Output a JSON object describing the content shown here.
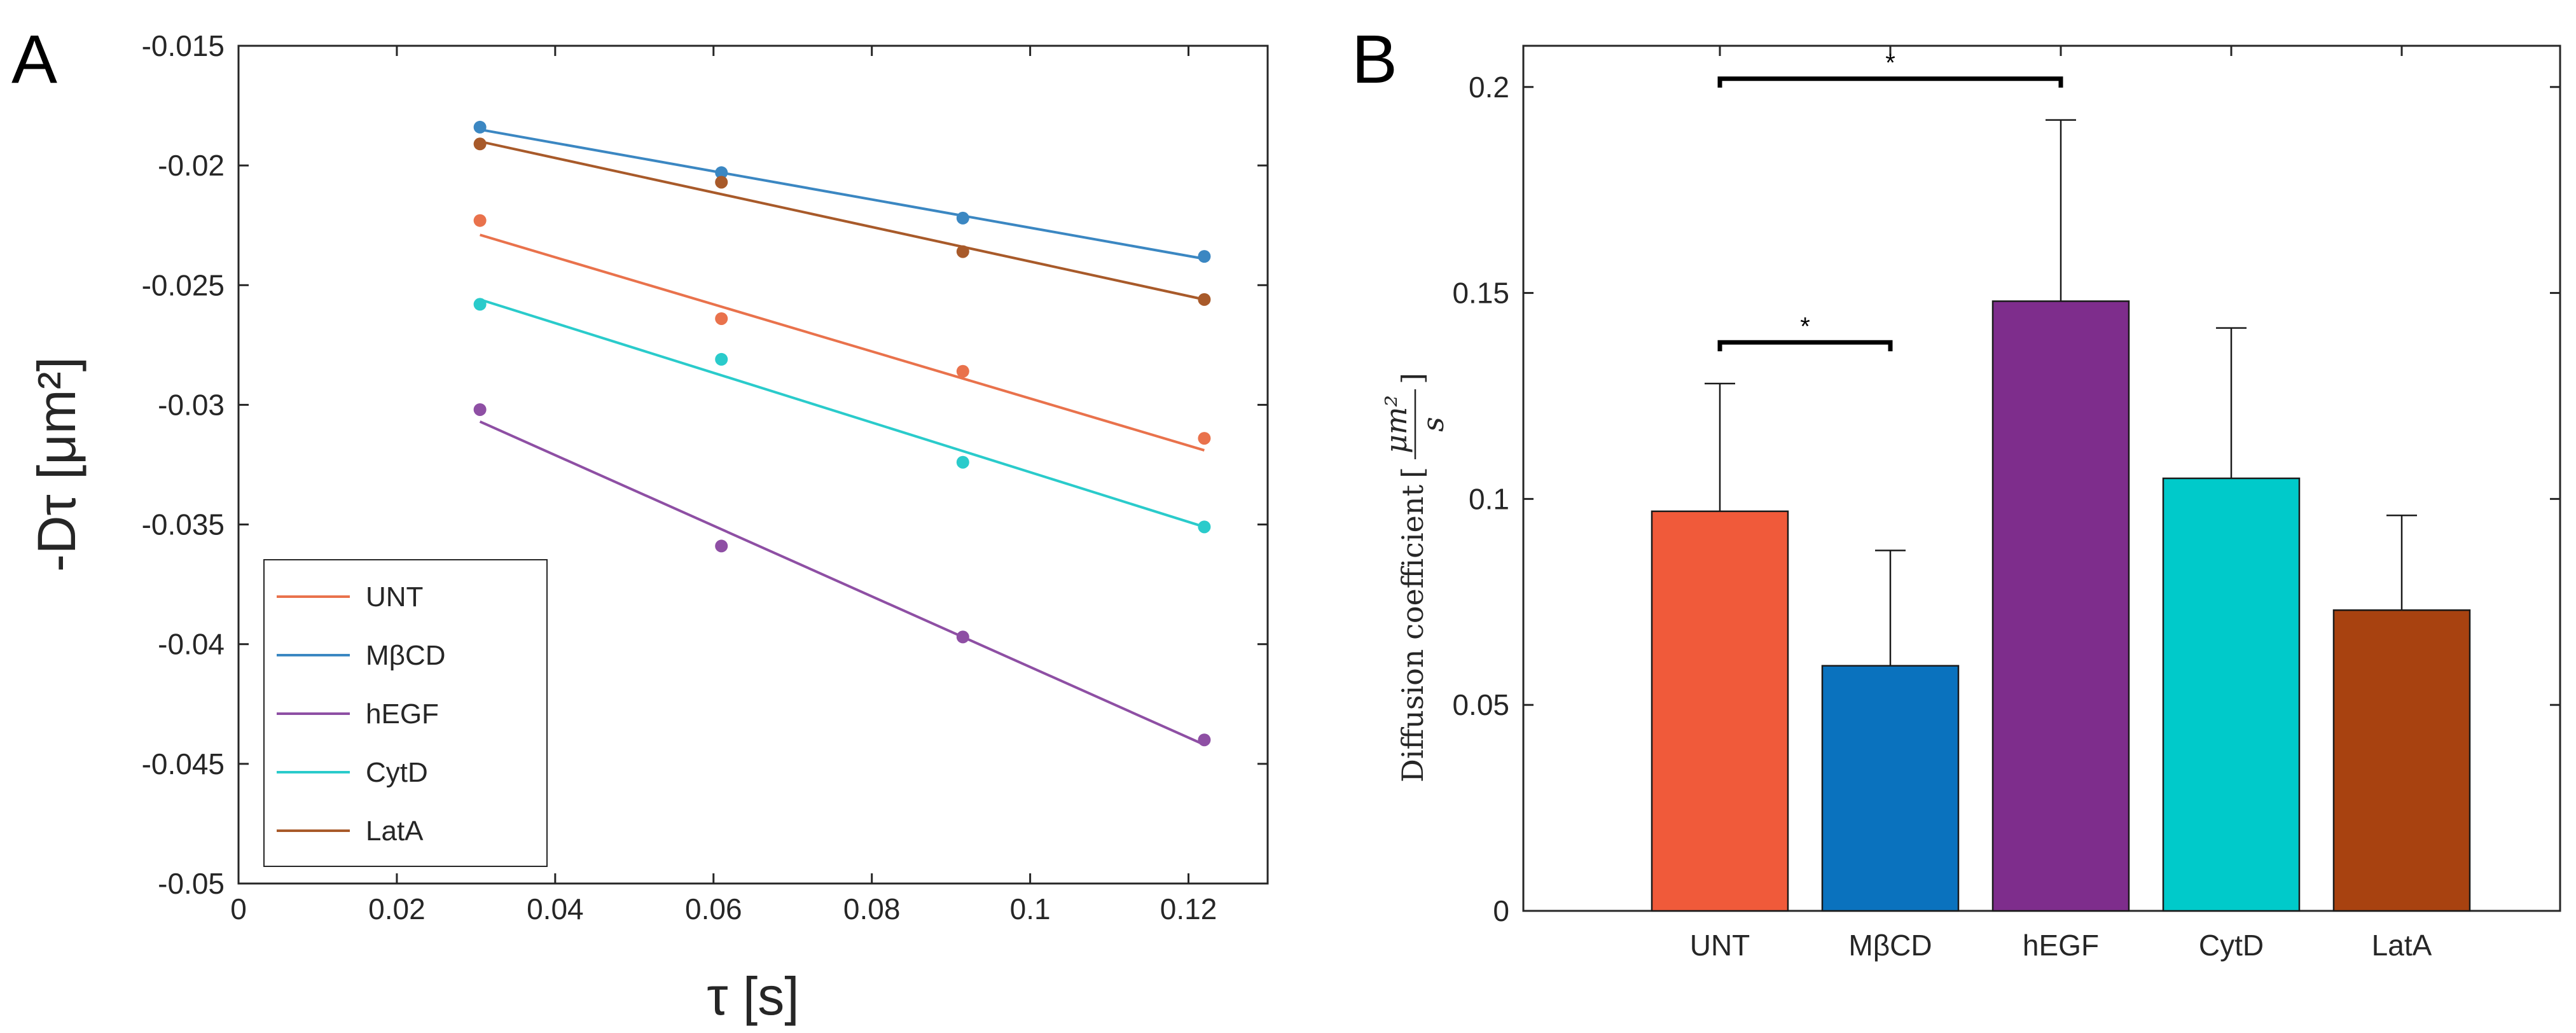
{
  "figure": {
    "panel_a_letter": "A",
    "panel_b_letter": "B"
  },
  "chart_data": [
    {
      "type": "scatter",
      "title": "",
      "xlabel": "τ [s]",
      "ylabel": "-Dτ [μm²]",
      "xlim": [
        0,
        0.13
      ],
      "ylim": [
        -0.05,
        -0.015
      ],
      "x_ticks": [
        0,
        0.02,
        0.04,
        0.06,
        0.08,
        0.1,
        0.12
      ],
      "x_tick_labels": [
        "0",
        "0.02",
        "0.04",
        "0.06",
        "0.08",
        "0.1",
        "0.12"
      ],
      "y_ticks": [
        -0.015,
        -0.02,
        -0.025,
        -0.03,
        -0.035,
        -0.04,
        -0.045,
        -0.05
      ],
      "y_tick_labels": [
        "-0.015",
        "-0.02",
        "-0.025",
        "-0.03",
        "-0.035",
        "-0.04",
        "-0.045",
        "-0.05"
      ],
      "legend_position": "bottom-left",
      "x": [
        0.0305,
        0.061,
        0.0915,
        0.122
      ],
      "series": [
        {
          "name": "UNT",
          "color": "#E9724C",
          "values": [
            -0.0223,
            -0.0264,
            -0.0286,
            -0.0314
          ],
          "fit": [
            -0.0229,
            -0.0319
          ]
        },
        {
          "name": "MβCD",
          "color": "#3B87C2",
          "values": [
            -0.0184,
            -0.0203,
            -0.0222,
            -0.0238
          ],
          "fit": [
            -0.0185,
            -0.0239
          ]
        },
        {
          "name": "hEGF",
          "color": "#8E4FA4",
          "values": [
            -0.0302,
            -0.0359,
            -0.0397,
            -0.044
          ],
          "fit": [
            -0.0307,
            -0.0442
          ]
        },
        {
          "name": "CytD",
          "color": "#2ACBCB",
          "values": [
            -0.0258,
            -0.0281,
            -0.0324,
            -0.0351
          ],
          "fit": [
            -0.0256,
            -0.0351
          ]
        },
        {
          "name": "LatA",
          "color": "#A85A2A",
          "values": [
            -0.0191,
            -0.0207,
            -0.0236,
            -0.0256
          ],
          "fit": [
            -0.019,
            -0.0256
          ]
        }
      ]
    },
    {
      "type": "bar",
      "title": "",
      "xlabel": "",
      "ylabel": "Diffusion coefficient [μm²/s]",
      "ylabel_text": "Diffusion coefficient",
      "ylabel_unit_num": "μm²",
      "ylabel_unit_den": "s",
      "ylim": [
        0,
        0.21
      ],
      "y_ticks": [
        0,
        0.05,
        0.1,
        0.15,
        0.2
      ],
      "y_tick_labels": [
        "0",
        "0.05",
        "0.1",
        "0.15",
        "0.2"
      ],
      "categories": [
        "UNT",
        "MβCD",
        "hEGF",
        "CytD",
        "LatA"
      ],
      "values": [
        0.097,
        0.0595,
        0.148,
        0.105,
        0.073
      ],
      "errors": [
        0.031,
        0.028,
        0.044,
        0.0365,
        0.023
      ],
      "colors": [
        "#F05A3A",
        "#0A72BE",
        "#7E2D8C",
        "#00CACA",
        "#A84210"
      ],
      "significance": [
        {
          "from": 0,
          "to": 1,
          "level": 0.138,
          "label": "*"
        },
        {
          "from": 0,
          "to": 2,
          "level": 0.202,
          "label": "*"
        }
      ]
    }
  ]
}
